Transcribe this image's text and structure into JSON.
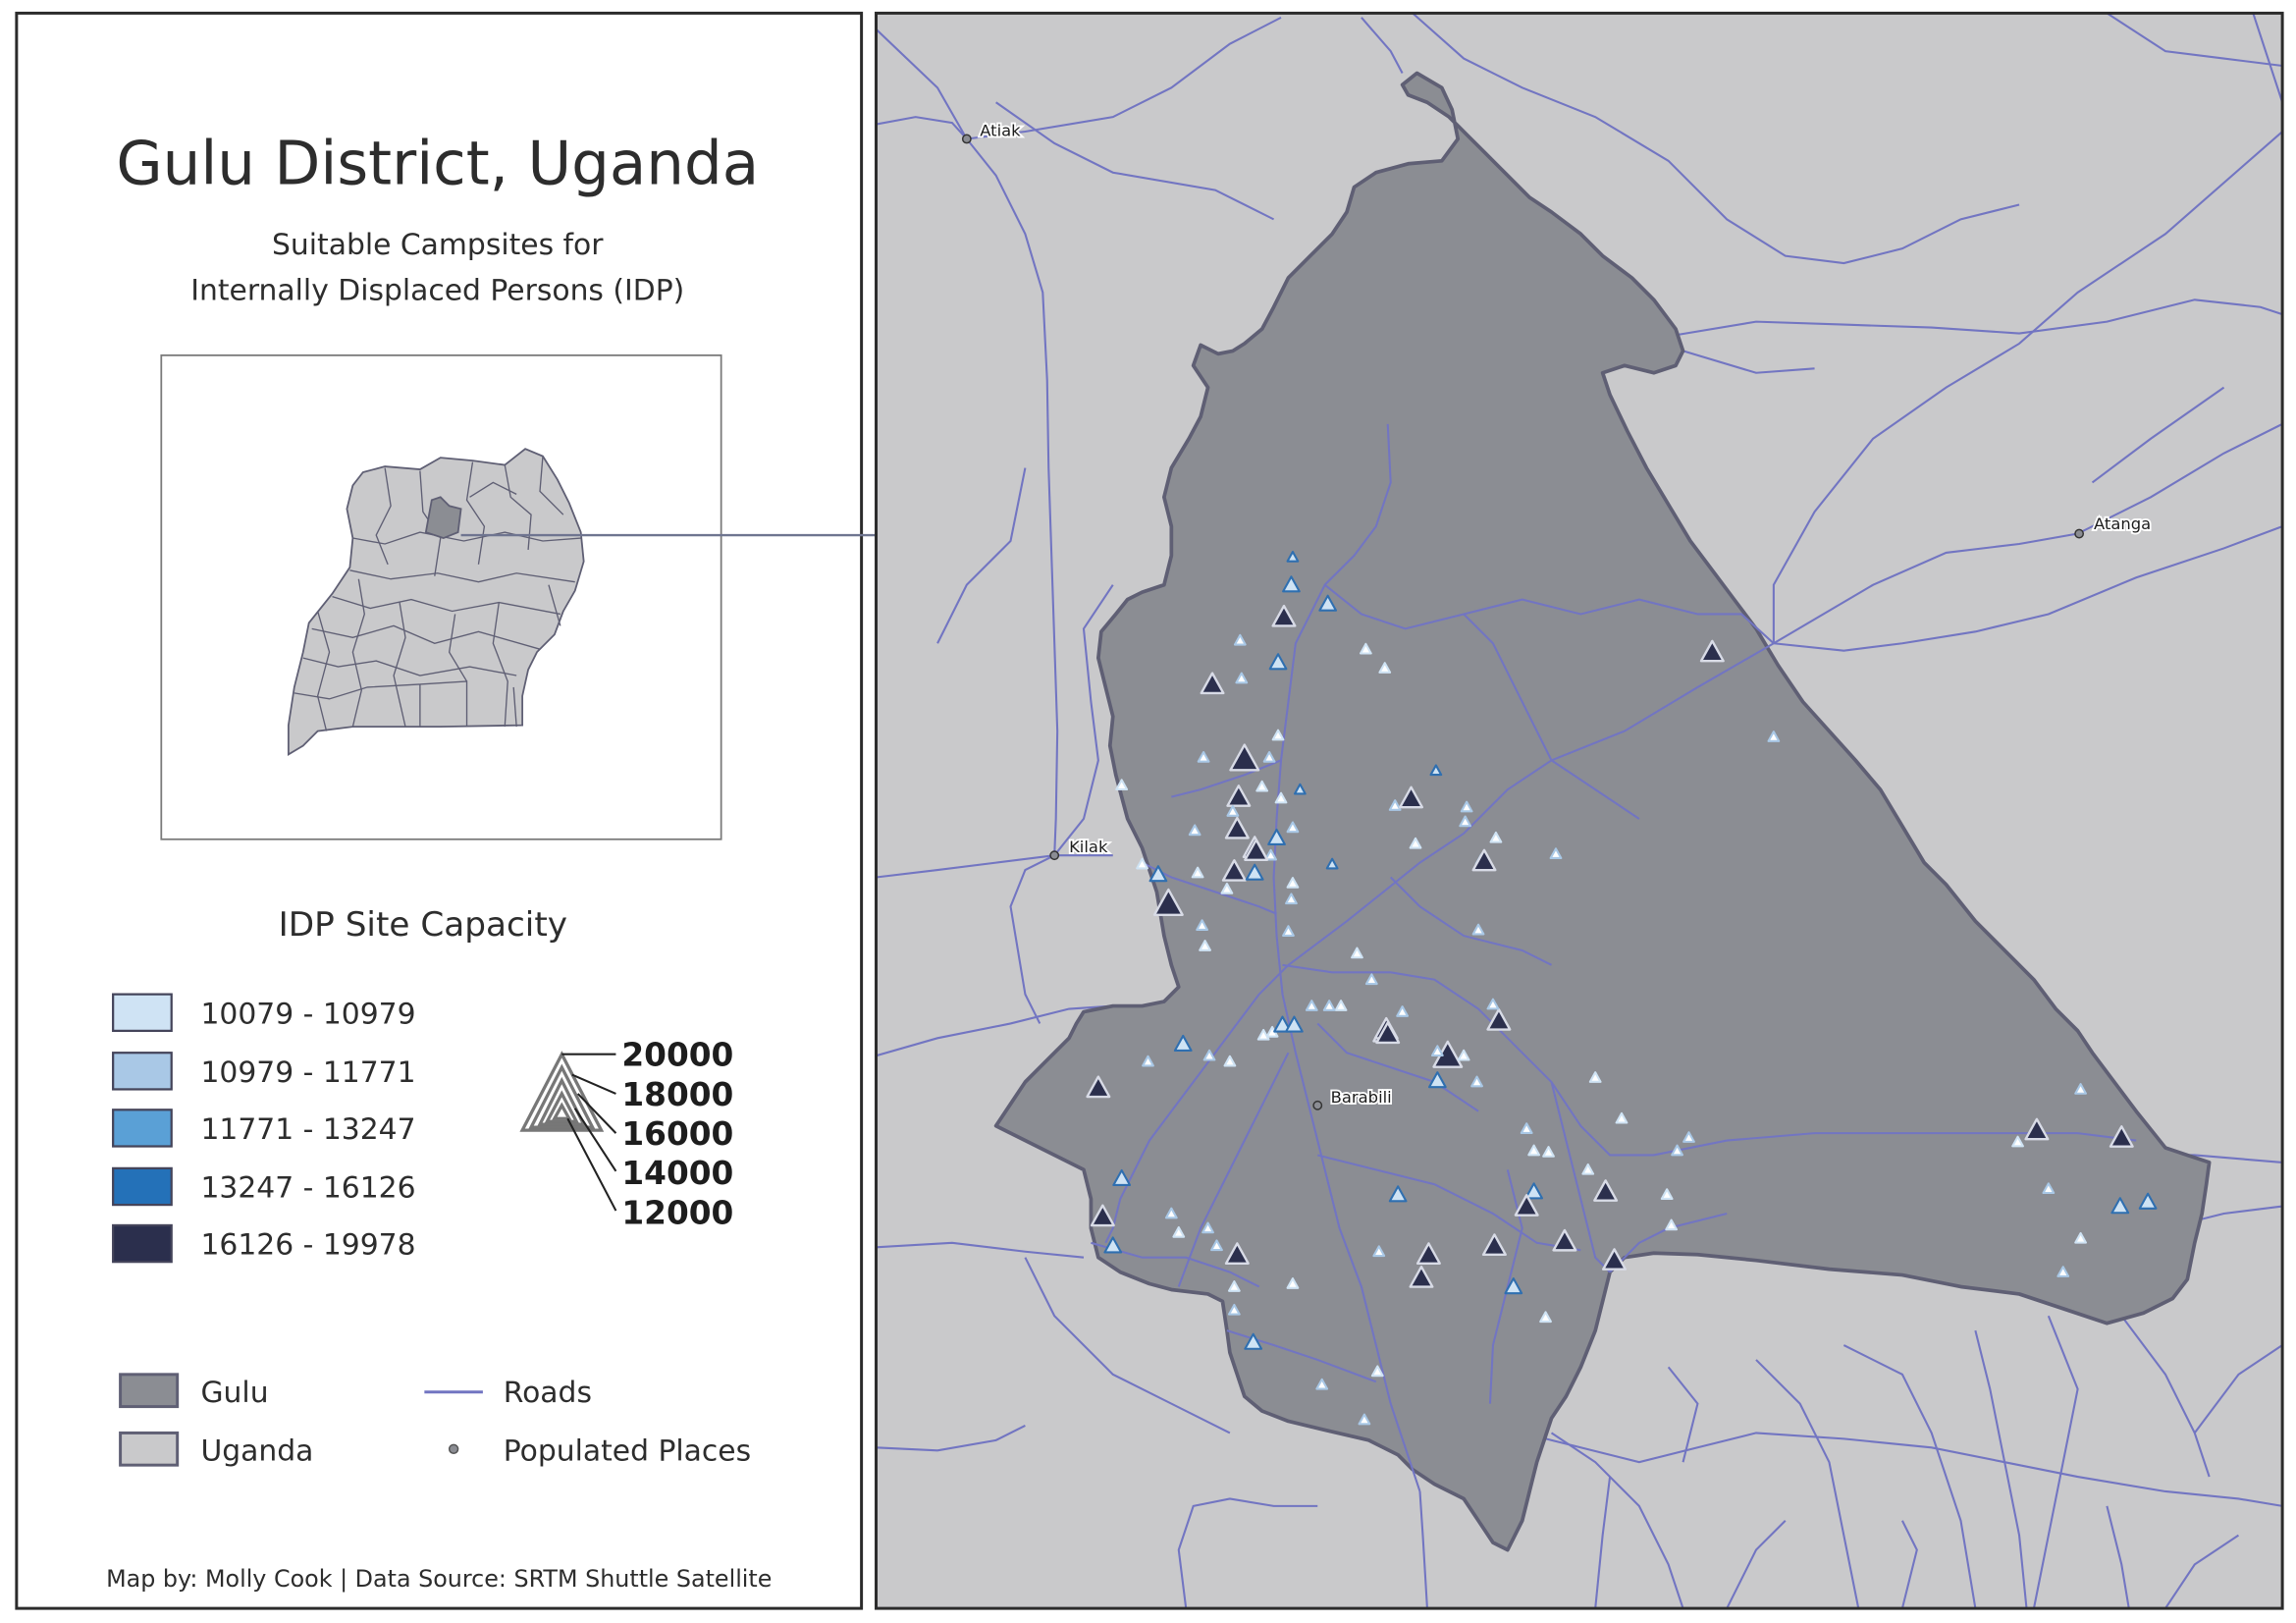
{
  "title": "Gulu District, Uganda",
  "subtitle_line1": "Suitable Campsites for",
  "subtitle_line2": "Internally Displaced Persons (IDP)",
  "legend": {
    "capacity_heading": "IDP Site Capacity",
    "classes": [
      {
        "label": "10079 - 10979",
        "color": "#cfe3f4"
      },
      {
        "label": "10979 - 11771",
        "color": "#a9c8e6"
      },
      {
        "label": "11771 - 13247",
        "color": "#5aa0d6"
      },
      {
        "label": "13247 - 16126",
        "color": "#2471b8"
      },
      {
        "label": "16126 - 19978",
        "color": "#2b2f4d"
      }
    ],
    "size_values": [
      "20000",
      "18000",
      "16000",
      "14000",
      "12000"
    ],
    "layers": {
      "gulu": "Gulu",
      "uganda": "Uganda",
      "roads": "Roads",
      "populated_places": "Populated Places"
    }
  },
  "credit": "Map by: Molly Cook | Data Source: SRTM Shuttle Satellite",
  "places": {
    "atiak": "Atiak",
    "kilak": "Kilak",
    "atanga": "Atanga",
    "barabili": "Barabili"
  },
  "colors": {
    "gulu_fill": "#8b8d93",
    "uganda_fill": "#c9c9cb",
    "road": "#7275c2",
    "outline": "#5f5f74"
  },
  "sites": [
    {
      "c": 3,
      "s": 1
    },
    {
      "c": 3,
      "s": 2
    },
    {
      "c": 5,
      "s": 3
    },
    {
      "c": 3,
      "s": 2
    },
    {
      "c": 2,
      "s": 1
    },
    {
      "c": 1,
      "s": 1
    },
    {
      "c": 3,
      "s": 2
    },
    {
      "c": 1,
      "s": 1
    },
    {
      "c": 5,
      "s": 3
    },
    {
      "c": 2,
      "s": 1
    },
    {
      "c": 5,
      "s": 3
    },
    {
      "c": 1,
      "s": 1
    },
    {
      "c": 2,
      "s": 1
    },
    {
      "c": 5,
      "s": 4
    },
    {
      "c": 2,
      "s": 1
    },
    {
      "c": 1,
      "s": 1
    },
    {
      "c": 3,
      "s": 1
    },
    {
      "c": 1,
      "s": 1
    },
    {
      "c": 5,
      "s": 3
    },
    {
      "c": 1,
      "s": 1
    },
    {
      "c": 2,
      "s": 1
    },
    {
      "c": 3,
      "s": 1
    },
    {
      "c": 2,
      "s": 1
    },
    {
      "c": 2,
      "s": 1
    },
    {
      "c": 5,
      "s": 3
    },
    {
      "c": 5,
      "s": 3
    },
    {
      "c": 2,
      "s": 1
    },
    {
      "c": 2,
      "s": 1
    },
    {
      "c": 3,
      "s": 2
    },
    {
      "c": 2,
      "s": 1
    },
    {
      "c": 5,
      "s": 3
    },
    {
      "c": 2,
      "s": 1
    },
    {
      "c": 1,
      "s": 1
    },
    {
      "c": 3,
      "s": 2
    },
    {
      "c": 1,
      "s": 1
    },
    {
      "c": 1,
      "s": 1
    },
    {
      "c": 1,
      "s": 1
    },
    {
      "c": 5,
      "s": 3
    },
    {
      "c": 5,
      "s": 3
    },
    {
      "c": 5,
      "s": 4
    },
    {
      "c": 2,
      "s": 1
    },
    {
      "c": 3,
      "s": 1
    },
    {
      "c": 1,
      "s": 1
    },
    {
      "c": 1,
      "s": 1
    },
    {
      "c": 2,
      "s": 1
    },
    {
      "c": 2,
      "s": 1
    },
    {
      "c": 1,
      "s": 1
    },
    {
      "c": 5,
      "s": 3
    },
    {
      "c": 2,
      "s": 1
    },
    {
      "c": 3,
      "s": 2
    },
    {
      "c": 2,
      "s": 1
    },
    {
      "c": 2,
      "s": 1
    },
    {
      "c": 1,
      "s": 1
    },
    {
      "c": 2,
      "s": 1
    },
    {
      "c": 2,
      "s": 1
    },
    {
      "c": 1,
      "s": 1
    },
    {
      "c": 2,
      "s": 1
    },
    {
      "c": 1,
      "s": 1
    },
    {
      "c": 5,
      "s": 3
    },
    {
      "c": 5,
      "s": 4
    },
    {
      "c": 2,
      "s": 1
    },
    {
      "c": 2,
      "s": 1
    },
    {
      "c": 5,
      "s": 3
    },
    {
      "c": 2,
      "s": 1
    },
    {
      "c": 2,
      "s": 1
    },
    {
      "c": 1,
      "s": 1
    },
    {
      "c": 3,
      "s": 2
    },
    {
      "c": 5,
      "s": 3
    },
    {
      "c": 2,
      "s": 1
    },
    {
      "c": 3,
      "s": 2
    },
    {
      "c": 1,
      "s": 1
    },
    {
      "c": 1,
      "s": 1
    },
    {
      "c": 3,
      "s": 2
    },
    {
      "c": 2,
      "s": 1
    },
    {
      "c": 1,
      "s": 1
    },
    {
      "c": 2,
      "s": 1
    },
    {
      "c": 5,
      "s": 3
    },
    {
      "c": 3,
      "s": 2
    },
    {
      "c": 2,
      "s": 1
    },
    {
      "c": 3,
      "s": 2
    },
    {
      "c": 5,
      "s": 3
    },
    {
      "c": 1,
      "s": 1
    },
    {
      "c": 1,
      "s": 1
    },
    {
      "c": 2,
      "s": 1
    },
    {
      "c": 1,
      "s": 1
    },
    {
      "c": 1,
      "s": 1
    },
    {
      "c": 2,
      "s": 1
    },
    {
      "c": 2,
      "s": 1
    },
    {
      "c": 1,
      "s": 1
    },
    {
      "c": 1,
      "s": 1
    },
    {
      "c": 5,
      "s": 3
    },
    {
      "c": 3,
      "s": 2
    },
    {
      "c": 5,
      "s": 3
    },
    {
      "c": 3,
      "s": 2
    },
    {
      "c": 5,
      "s": 3
    },
    {
      "c": 1,
      "s": 1
    },
    {
      "c": 2,
      "s": 1
    },
    {
      "c": 5,
      "s": 3
    },
    {
      "c": 3,
      "s": 2
    },
    {
      "c": 2,
      "s": 1
    },
    {
      "c": 3,
      "s": 2
    },
    {
      "c": 1,
      "s": 1
    },
    {
      "c": 2,
      "s": 1
    },
    {
      "c": 1,
      "s": 1
    },
    {
      "c": 5,
      "s": 3
    },
    {
      "c": 5,
      "s": 3
    },
    {
      "c": 5,
      "s": 3
    },
    {
      "c": 5,
      "s": 3
    },
    {
      "c": 2,
      "s": 1
    },
    {
      "c": 5,
      "s": 3
    },
    {
      "c": 3,
      "s": 2
    },
    {
      "c": 1,
      "s": 1
    },
    {
      "c": 1,
      "s": 1
    },
    {
      "c": 5,
      "s": 3
    },
    {
      "c": 1,
      "s": 1
    },
    {
      "c": 2,
      "s": 1
    },
    {
      "c": 2,
      "s": 1
    },
    {
      "c": 1,
      "s": 1
    },
    {
      "c": 2,
      "s": 1
    },
    {
      "c": 5,
      "s": 3
    },
    {
      "c": 3,
      "s": 2
    },
    {
      "c": 2,
      "s": 1
    },
    {
      "c": 3,
      "s": 2
    },
    {
      "c": 2,
      "s": 1
    },
    {
      "c": 1,
      "s": 1
    },
    {
      "c": 2,
      "s": 1
    }
  ]
}
